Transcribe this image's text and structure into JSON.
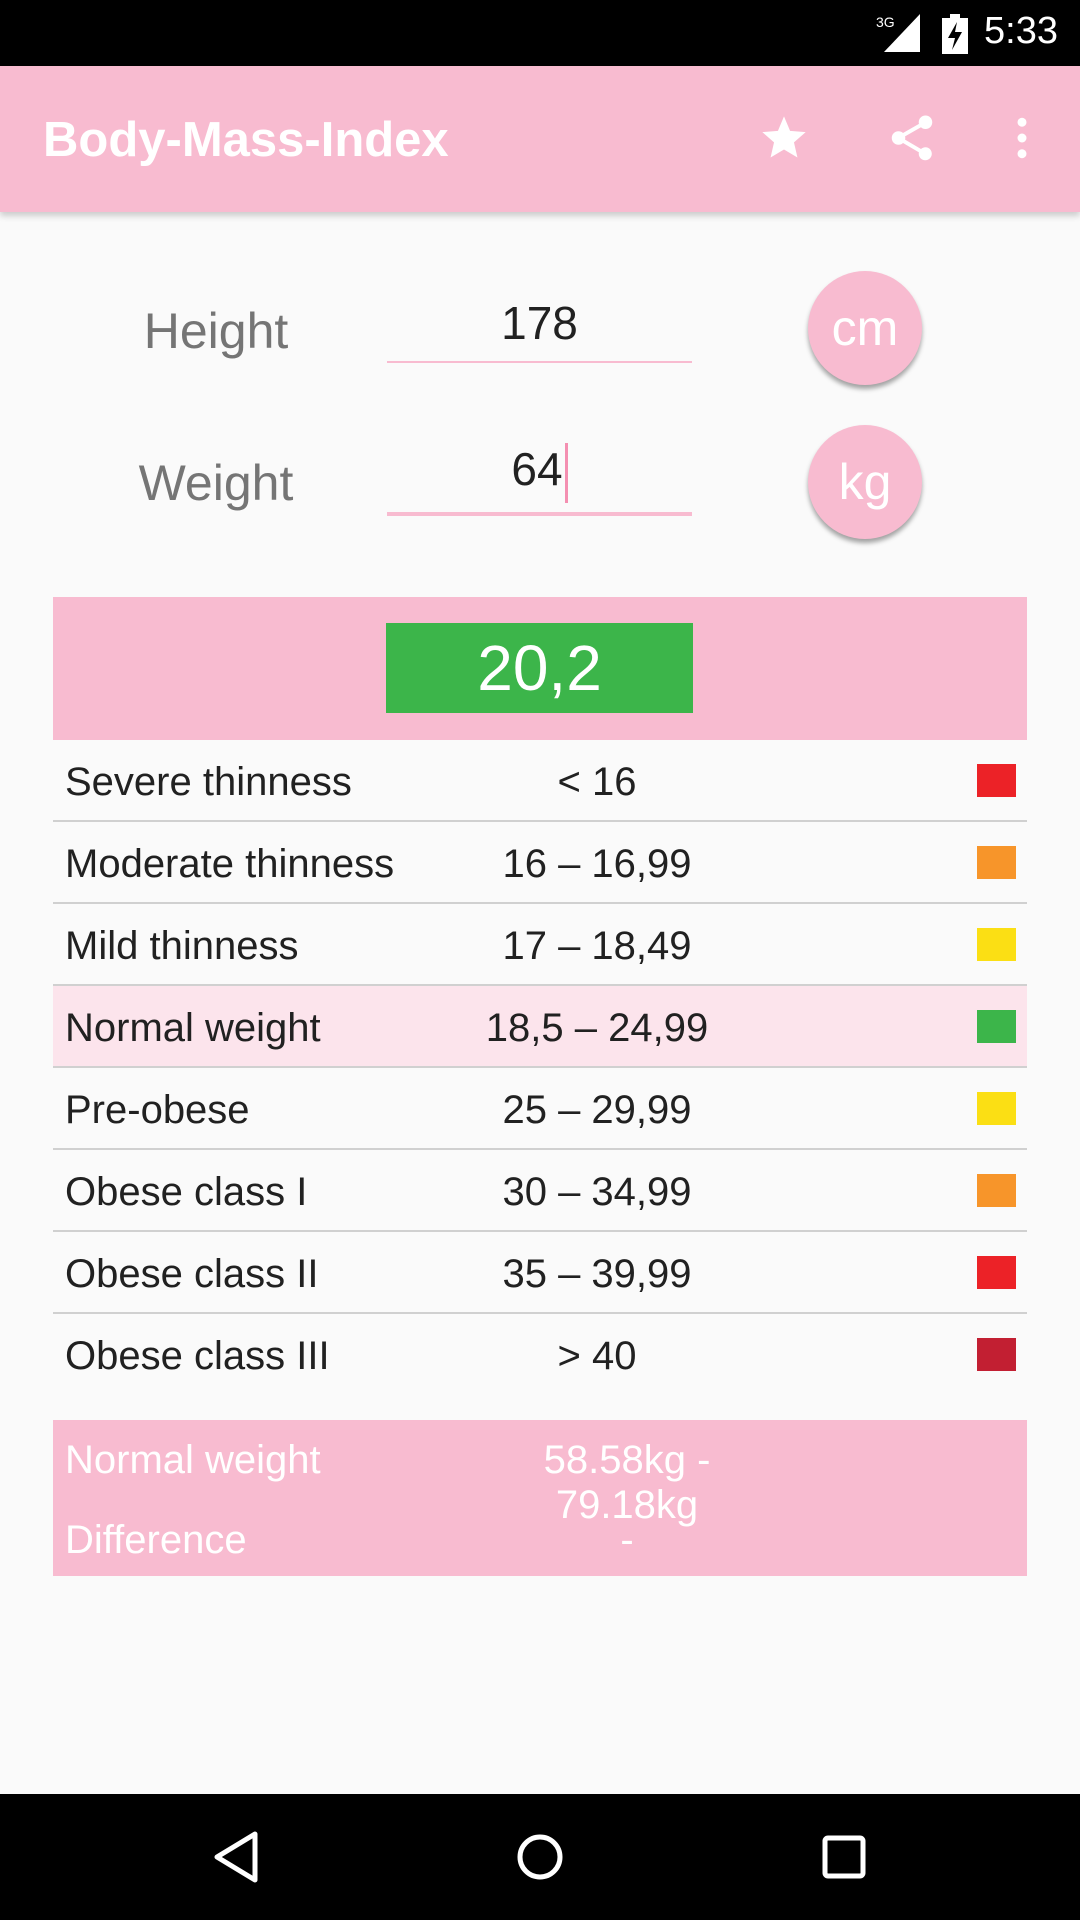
{
  "status_bar": {
    "network": "3G",
    "time": "5:33"
  },
  "app_bar": {
    "title": "Body-Mass-Index",
    "actions": [
      "star-icon",
      "share-icon",
      "more-vert-icon"
    ]
  },
  "inputs": {
    "height": {
      "label": "Height",
      "value": "178",
      "unit": "cm"
    },
    "weight": {
      "label": "Weight",
      "value": "64",
      "unit": "kg"
    }
  },
  "result": {
    "bmi": "20,2",
    "color": "#3cb54a"
  },
  "categories": [
    {
      "label": "Severe thinness",
      "range": "< 16",
      "color": "#ec2227"
    },
    {
      "label": "Moderate thinness",
      "range": "16 – 16,99",
      "color": "#f7952a"
    },
    {
      "label": "Mild thinness",
      "range": "17 – 18,49",
      "color": "#fbdf14"
    },
    {
      "label": "Normal weight",
      "range": "18,5 – 24,99",
      "color": "#3cb54a",
      "highlighted": true
    },
    {
      "label": "Pre-obese",
      "range": "25 – 29,99",
      "color": "#fbdf14"
    },
    {
      "label": "Obese class I",
      "range": "30 – 34,99",
      "color": "#f7952a"
    },
    {
      "label": "Obese class II",
      "range": "35 – 39,99",
      "color": "#ec2227"
    },
    {
      "label": "Obese class III",
      "range": "> 40",
      "color": "#c21f32"
    }
  ],
  "summary": {
    "normal_label": "Normal weight",
    "normal_value": "58.58kg - 79.18kg",
    "difference_label": "Difference",
    "difference_value": "-"
  },
  "colors": {
    "accent": "#f8bbd0",
    "highlight_row": "#fce4ec"
  }
}
